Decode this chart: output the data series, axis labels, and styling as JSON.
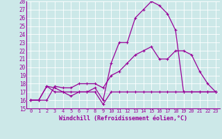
{
  "xlabel": "Windchill (Refroidissement éolien,°C)",
  "xlim": [
    -0.5,
    23.5
  ],
  "ylim": [
    15,
    28
  ],
  "yticks": [
    15,
    16,
    17,
    18,
    19,
    20,
    21,
    22,
    23,
    24,
    25,
    26,
    27,
    28
  ],
  "xticks": [
    0,
    1,
    2,
    3,
    4,
    5,
    6,
    7,
    8,
    9,
    10,
    11,
    12,
    13,
    14,
    15,
    16,
    17,
    18,
    19,
    20,
    21,
    22,
    23
  ],
  "background_color": "#cce8e8",
  "line_color": "#990099",
  "curve1_x": [
    0,
    1,
    2,
    3,
    4,
    5,
    6,
    7,
    8,
    9,
    10,
    11,
    12,
    13,
    14,
    15,
    16,
    17,
    18,
    19,
    20,
    21,
    22,
    23
  ],
  "curve1_y": [
    16,
    16,
    17.7,
    17,
    17,
    16.5,
    17,
    17,
    17,
    15.5,
    17,
    17,
    17,
    17,
    17,
    17,
    17,
    17,
    17,
    17,
    17,
    17,
    17,
    17
  ],
  "curve2_x": [
    0,
    1,
    2,
    3,
    4,
    5,
    6,
    7,
    8,
    9,
    10,
    11,
    12,
    13,
    14,
    15,
    16,
    17,
    18,
    19,
    20,
    21,
    22,
    23
  ],
  "curve2_y": [
    16,
    16,
    17.7,
    17.5,
    17,
    17,
    17,
    17,
    17.5,
    16,
    20.5,
    23,
    23,
    26,
    27,
    28,
    27.5,
    26.5,
    24.5,
    17,
    17,
    17,
    17,
    17
  ],
  "curve3_x": [
    0,
    1,
    2,
    3,
    4,
    5,
    6,
    7,
    8,
    9,
    10,
    11,
    12,
    13,
    14,
    15,
    16,
    17,
    18,
    19,
    20,
    21,
    22,
    23
  ],
  "curve3_y": [
    16,
    16,
    16,
    17.7,
    17.5,
    17.5,
    18,
    18,
    18,
    17.5,
    19,
    19.5,
    20.5,
    21.5,
    22,
    22.5,
    21,
    21,
    22,
    22,
    21.5,
    19.5,
    18,
    17
  ]
}
